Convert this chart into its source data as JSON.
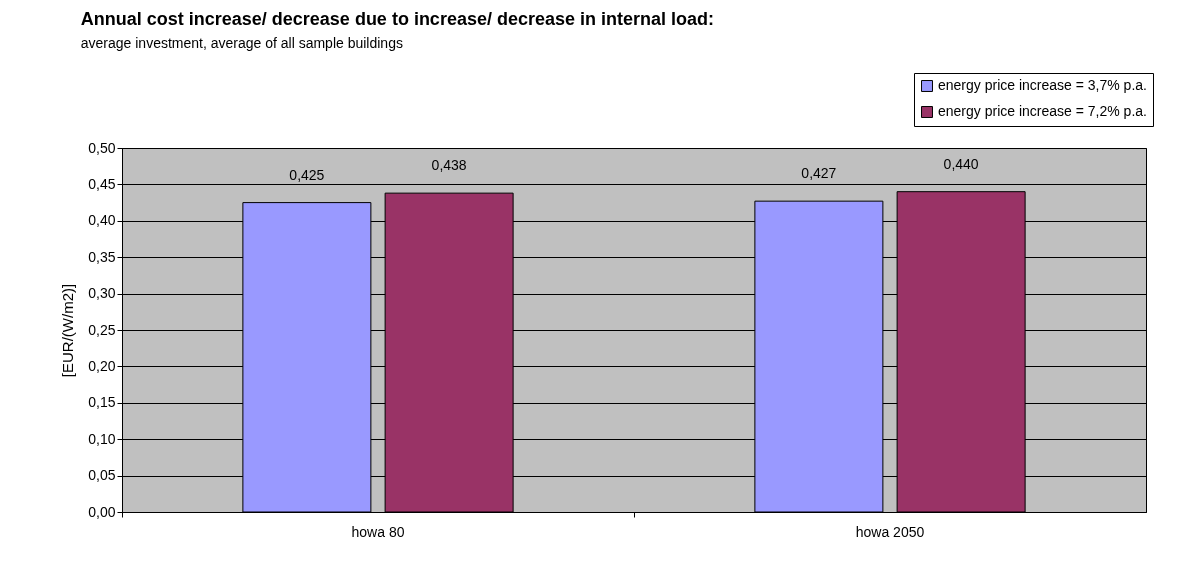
{
  "chart_data": {
    "type": "bar",
    "title": "Annual cost increase/ decrease due to increase/ decrease in internal load:",
    "subtitle": "average investment, average of all sample buildings",
    "ylabel": "[EUR/(W/m2)]",
    "categories": [
      "howa 80",
      "howa 2050"
    ],
    "series": [
      {
        "name": "energy price increase = 3,7% p.a.",
        "color": "#9999ff",
        "values": [
          0.425,
          0.427
        ],
        "value_labels": [
          "0,425",
          "0,427"
        ]
      },
      {
        "name": "energy price increase = 7,2% p.a.",
        "color": "#993366",
        "values": [
          0.438,
          0.44
        ],
        "value_labels": [
          "0,438",
          "0,440"
        ]
      }
    ],
    "ylim": [
      0,
      0.5
    ],
    "yticks": [
      {
        "value": 0,
        "label": "0,00"
      },
      {
        "value": 0.05,
        "label": "0,05"
      },
      {
        "value": 0.1,
        "label": "0,10"
      },
      {
        "value": 0.15,
        "label": "0,15"
      },
      {
        "value": 0.2,
        "label": "0,20"
      },
      {
        "value": 0.25,
        "label": "0,25"
      },
      {
        "value": 0.3,
        "label": "0,30"
      },
      {
        "value": 0.35,
        "label": "0,35"
      },
      {
        "value": 0.4,
        "label": "0,40"
      },
      {
        "value": 0.45,
        "label": "0,45"
      },
      {
        "value": 0.5,
        "label": "0,50"
      }
    ],
    "grid": "y",
    "legend": "top right"
  }
}
